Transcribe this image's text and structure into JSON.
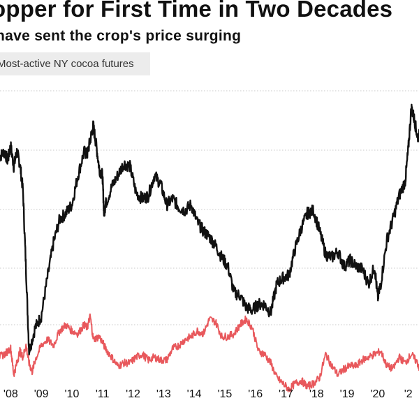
{
  "header": {
    "title": "opper for First Time in Two Decades",
    "subtitle": "have sent the crop's price surging"
  },
  "colors": {
    "cocoa": "#111111",
    "second_series": "#e8585c",
    "grid": "#c8c8c8",
    "legend_bg": "#ececec"
  },
  "chart_data": {
    "type": "line",
    "grid": true,
    "legend_position": "top-left",
    "x_tick_labels": [
      "'08",
      "'09",
      "'10",
      "'11",
      "'12",
      "'13",
      "'14",
      "'15",
      "'16",
      "'17",
      "'18",
      "'19",
      "'20",
      "'2"
    ],
    "xlim": [
      2007.65,
      2021.35
    ],
    "ylim": [
      0,
      100
    ],
    "series": [
      {
        "name": "Most-active NY cocoa futures",
        "x": [
          2007.6,
          2007.8,
          2007.9,
          2008.0,
          2008.1,
          2008.2,
          2008.3,
          2008.4,
          2008.5,
          2008.6,
          2008.8,
          2009.0,
          2009.2,
          2009.4,
          2009.6,
          2009.8,
          2010.0,
          2010.2,
          2010.4,
          2010.5,
          2010.6,
          2010.7,
          2010.8,
          2010.9,
          2011.0,
          2011.05,
          2011.1,
          2011.3,
          2011.5,
          2011.7,
          2011.9,
          2012.1,
          2012.3,
          2012.5,
          2012.7,
          2012.9,
          2013.1,
          2013.3,
          2013.5,
          2013.7,
          2013.9,
          2014.1,
          2014.3,
          2014.5,
          2014.7,
          2014.9,
          2015.1,
          2015.3,
          2015.5,
          2015.7,
          2015.9,
          2016.1,
          2016.3,
          2016.5,
          2016.7,
          2016.9,
          2017.1,
          2017.3,
          2017.5,
          2017.7,
          2017.9,
          2018.1,
          2018.3,
          2018.5,
          2018.7,
          2018.9,
          2019.1,
          2019.3,
          2019.5,
          2019.7,
          2019.9,
          2020.0,
          2020.1,
          2020.3,
          2020.5,
          2020.7,
          2020.9,
          2021.0,
          2021.1,
          2021.2,
          2021.3,
          2021.4
        ],
        "y": [
          76,
          78,
          75,
          80,
          73,
          78,
          74,
          65,
          38,
          10,
          18,
          22,
          35,
          47,
          55,
          57,
          60,
          70,
          78,
          77,
          82,
          87,
          80,
          72,
          70,
          57,
          60,
          66,
          70,
          74,
          73,
          64,
          62,
          63,
          70,
          67,
          60,
          62,
          59,
          58,
          60,
          54,
          51,
          49,
          46,
          42,
          39,
          30,
          29,
          25,
          24,
          26,
          26,
          23,
          33,
          35,
          36,
          45,
          52,
          57,
          58,
          51,
          43,
          42,
          44,
          39,
          41,
          39,
          38,
          33,
          39,
          28,
          33,
          48,
          55,
          63,
          68,
          79,
          93,
          89,
          83,
          84
        ]
      },
      {
        "name": "",
        "x": [
          2007.6,
          2007.8,
          2008.0,
          2008.1,
          2008.2,
          2008.3,
          2008.4,
          2008.5,
          2008.6,
          2008.7,
          2008.8,
          2009.0,
          2009.2,
          2009.4,
          2009.6,
          2009.8,
          2010.0,
          2010.2,
          2010.4,
          2010.5,
          2010.6,
          2010.7,
          2010.9,
          2011.1,
          2011.3,
          2011.5,
          2011.7,
          2011.9,
          2012.1,
          2012.3,
          2012.5,
          2012.7,
          2012.9,
          2013.1,
          2013.3,
          2013.5,
          2013.7,
          2013.9,
          2014.1,
          2014.3,
          2014.5,
          2014.7,
          2014.9,
          2015.1,
          2015.3,
          2015.5,
          2015.7,
          2015.9,
          2016.1,
          2016.3,
          2016.5,
          2016.7,
          2016.9,
          2017.1,
          2017.3,
          2017.5,
          2017.7,
          2017.9,
          2018.1,
          2018.3,
          2018.5,
          2018.7,
          2018.9,
          2019.1,
          2019.3,
          2019.5,
          2019.7,
          2019.9,
          2020.1,
          2020.3,
          2020.5,
          2020.7,
          2020.9,
          2021.1,
          2021.3,
          2021.4
        ],
        "y": [
          8,
          9,
          11,
          2,
          6,
          10,
          8,
          12,
          6,
          3,
          7,
          12,
          14,
          12,
          17,
          19,
          17,
          16,
          19,
          18,
          22,
          14,
          15,
          11,
          8,
          5,
          6,
          6,
          8,
          9,
          7,
          8,
          7,
          7,
          11,
          12,
          14,
          15,
          17,
          16,
          21,
          20,
          15,
          15,
          16,
          19,
          21,
          18,
          10,
          9,
          6,
          1,
          -1,
          -3,
          -1,
          0,
          -2,
          -1,
          1,
          9,
          5,
          2,
          4,
          5,
          5,
          7,
          8,
          9,
          10,
          5,
          4,
          8,
          6,
          9,
          6,
          3
        ]
      }
    ]
  }
}
